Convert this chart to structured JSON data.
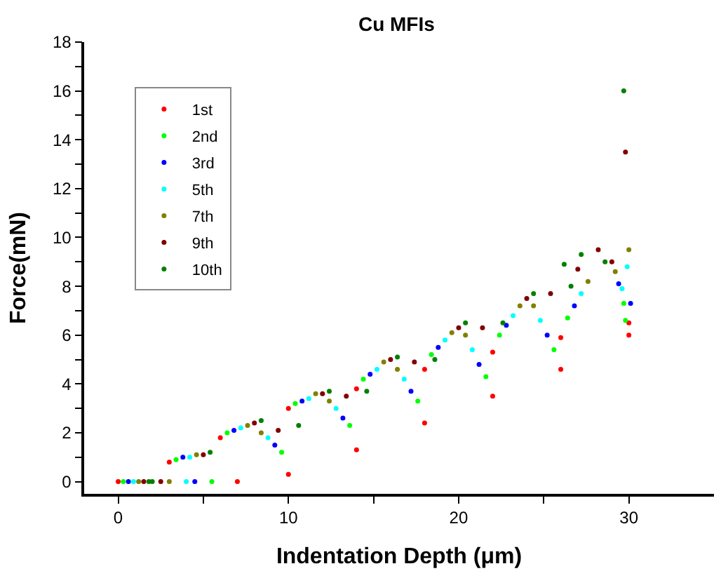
{
  "chart_data": {
    "type": "scatter",
    "title": "Cu MFIs",
    "xlabel": "Indentation Depth (μm)",
    "ylabel": "Force(mN)",
    "xlim": [
      -2,
      35
    ],
    "xticks": [
      0,
      {
        "value": 5,
        "label": null
      },
      10,
      {
        "value": 15,
        "label": null
      },
      20,
      {
        "value": 25,
        "label": null
      },
      30
    ],
    "ylim": [
      -0.5,
      18
    ],
    "yticks": [
      0,
      {
        "value": 1,
        "label": null
      },
      2,
      {
        "value": 3,
        "label": null
      },
      4,
      {
        "value": 5,
        "label": null
      },
      6,
      {
        "value": 7,
        "label": null
      },
      8,
      {
        "value": 9,
        "label": null
      },
      10,
      {
        "value": 11,
        "label": null
      },
      12,
      {
        "value": 13,
        "label": null
      },
      14,
      {
        "value": 15,
        "label": null
      },
      16,
      {
        "value": 17,
        "label": null
      },
      18
    ],
    "grid": false,
    "legend": "top left",
    "marker": "circle",
    "series": [
      {
        "name": "1st",
        "color": "#ff0000",
        "x": [
          0,
          3,
          6,
          10,
          14,
          18,
          22,
          26,
          30,
          30,
          26,
          22,
          18,
          14,
          10,
          7
        ],
        "values": [
          0,
          0.8,
          1.8,
          3.0,
          3.8,
          4.6,
          5.3,
          5.9,
          6.5,
          6.0,
          4.6,
          3.5,
          2.4,
          1.3,
          0.3,
          0
        ]
      },
      {
        "name": "2nd",
        "color": "#00ff00",
        "x": [
          0.3,
          3.4,
          6.4,
          10.4,
          14.4,
          18.4,
          22.4,
          26.4,
          29.7,
          29.8,
          25.6,
          21.6,
          17.6,
          13.6,
          9.6,
          5.5
        ],
        "values": [
          0,
          0.9,
          2.0,
          3.2,
          4.2,
          5.2,
          6.0,
          6.7,
          7.3,
          6.6,
          5.4,
          4.3,
          3.3,
          2.3,
          1.2,
          0
        ]
      },
      {
        "name": "3rd",
        "color": "#0000ff",
        "x": [
          0.6,
          3.8,
          6.8,
          10.8,
          14.8,
          18.8,
          22.8,
          26.8,
          29.4,
          30.1,
          25.2,
          21.2,
          17.2,
          13.2,
          9.2,
          4.5
        ],
        "values": [
          0,
          1.0,
          2.1,
          3.3,
          4.4,
          5.5,
          6.4,
          7.2,
          8.1,
          7.3,
          6.0,
          4.8,
          3.7,
          2.6,
          1.5,
          0
        ]
      },
      {
        "name": "5th",
        "color": "#00ffff",
        "x": [
          0.9,
          4.2,
          7.2,
          11.2,
          15.2,
          19.2,
          23.2,
          27.2,
          29.9,
          29.6,
          24.8,
          20.8,
          16.8,
          12.8,
          8.8,
          4
        ],
        "values": [
          0,
          1.0,
          2.2,
          3.4,
          4.6,
          5.8,
          6.8,
          7.7,
          8.8,
          7.9,
          6.6,
          5.4,
          4.2,
          3.0,
          1.8,
          0
        ]
      },
      {
        "name": "7th",
        "color": "#808000",
        "x": [
          1.2,
          4.6,
          7.6,
          11.6,
          15.6,
          19.6,
          23.6,
          27.6,
          30.0,
          29.2,
          24.4,
          20.4,
          16.4,
          12.4,
          8.4,
          3
        ],
        "values": [
          0,
          1.1,
          2.3,
          3.6,
          4.9,
          6.1,
          7.2,
          8.2,
          9.5,
          8.6,
          7.2,
          6.0,
          4.6,
          3.3,
          2.0,
          0
        ]
      },
      {
        "name": "9th",
        "color": "#800000",
        "x": [
          1.5,
          5.0,
          8.0,
          12.0,
          16.0,
          20.0,
          24.0,
          27.0,
          28.2,
          29.8,
          29,
          25.4,
          21.4,
          17.4,
          13.4,
          9.4,
          2.5
        ],
        "values": [
          0,
          1.1,
          2.4,
          3.6,
          5.0,
          6.3,
          7.5,
          8.7,
          9.5,
          13.5,
          9.0,
          7.7,
          6.3,
          4.9,
          3.5,
          2.1,
          0
        ]
      },
      {
        "name": "10th",
        "color": "#008000",
        "x": [
          1.8,
          5.4,
          8.4,
          12.4,
          16.4,
          20.4,
          24.4,
          26.2,
          27.2,
          29.7,
          28.6,
          26.6,
          22.6,
          18.6,
          14.6,
          10.6,
          2
        ],
        "values": [
          0,
          1.2,
          2.5,
          3.7,
          5.1,
          6.5,
          7.7,
          8.9,
          9.3,
          16.0,
          9.0,
          8.0,
          6.5,
          5.0,
          3.7,
          2.3,
          0
        ]
      }
    ]
  }
}
